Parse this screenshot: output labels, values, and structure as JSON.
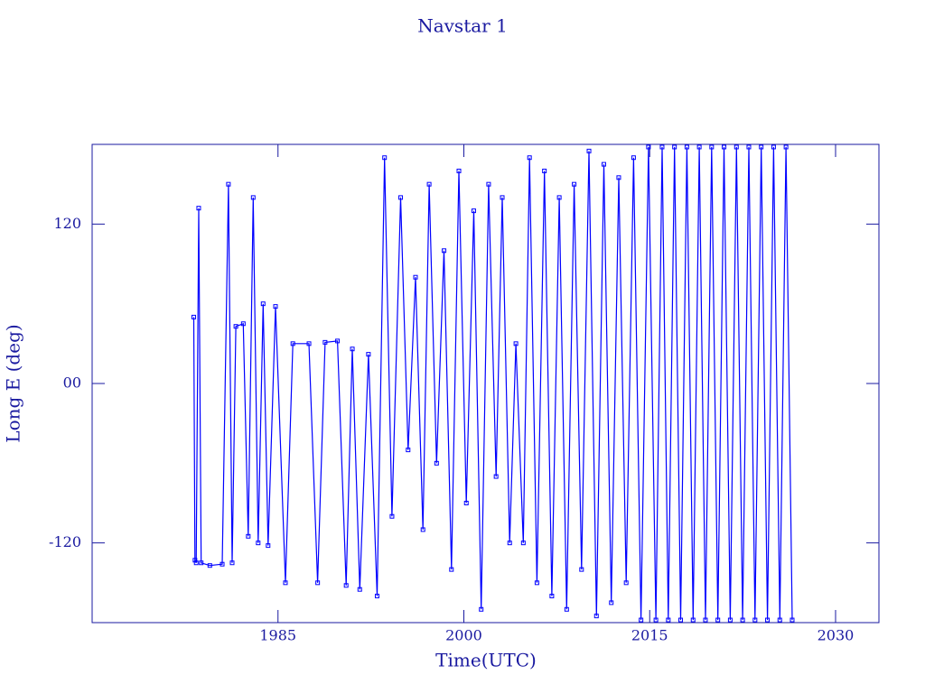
{
  "chart_data": {
    "type": "line",
    "title": "Navstar 1",
    "xlabel": "Time(UTC)",
    "ylabel": "Long E (deg)",
    "color": "#0000ff",
    "x": [
      1978.2,
      1978.3,
      1978.4,
      1978.6,
      1978.8,
      1979.5,
      1980.5,
      1981,
      1981.3,
      1981.6,
      1982.2,
      1982.6,
      1983,
      1983.4,
      1983.8,
      1984.2,
      1984.8,
      1985.6,
      1986.2,
      1987.5,
      1988.2,
      1988.8,
      1989.8,
      1990.5,
      1991,
      1991.6,
      1992.3,
      1993,
      1993.6,
      1994.2,
      1994.9,
      1995.5,
      1996.1,
      1996.7,
      1997.2,
      1997.8,
      1998.4,
      1999,
      1999.6,
      2000.2,
      2000.8,
      2001.4,
      2002,
      2002.6,
      2003.1,
      2003.7,
      2004.2,
      2004.8,
      2005.3,
      2005.9,
      2006.5,
      2007.1,
      2007.7,
      2008.3,
      2008.9,
      2009.5,
      2010.1,
      2010.7,
      2011.3,
      2011.9,
      2012.5,
      2013.1,
      2013.7,
      2014.3,
      2014.9,
      2015.5,
      2016,
      2016.5,
      2017,
      2017.5,
      2018,
      2018.5,
      2019,
      2019.5,
      2020,
      2020.5,
      2021,
      2021.5,
      2022,
      2022.5,
      2023,
      2023.5,
      2024,
      2024.5,
      2025,
      2025.5,
      2026,
      2026.5
    ],
    "values": [
      50,
      -133,
      -135,
      132,
      -135,
      -137,
      -136,
      150,
      -135,
      43,
      45,
      -115,
      140,
      -120,
      60,
      -122,
      58,
      -150,
      30,
      30,
      -150,
      31,
      32,
      -152,
      26,
      -155,
      22,
      -160,
      170,
      -100,
      140,
      -50,
      80,
      -110,
      150,
      -60,
      100,
      -140,
      160,
      -90,
      130,
      -170,
      150,
      -70,
      140,
      -120,
      30,
      -120,
      170,
      -150,
      160,
      -160,
      140,
      -170,
      150,
      -140,
      175,
      -175,
      165,
      -165,
      155,
      -150,
      170,
      -178,
      178,
      -178,
      178,
      -178,
      178,
      -178,
      178,
      -178,
      178,
      -178,
      178,
      -178,
      178,
      -178,
      178,
      -178,
      178,
      -178,
      178,
      -178,
      178,
      -178,
      178,
      -178
    ],
    "xlim": [
      1970,
      2033.5
    ],
    "xticks": [
      1985,
      2000,
      2015,
      2030
    ],
    "ylim": [
      -180,
      180
    ],
    "yticks": [
      120,
      {
        "value": 0,
        "label": "00"
      },
      -120
    ]
  }
}
